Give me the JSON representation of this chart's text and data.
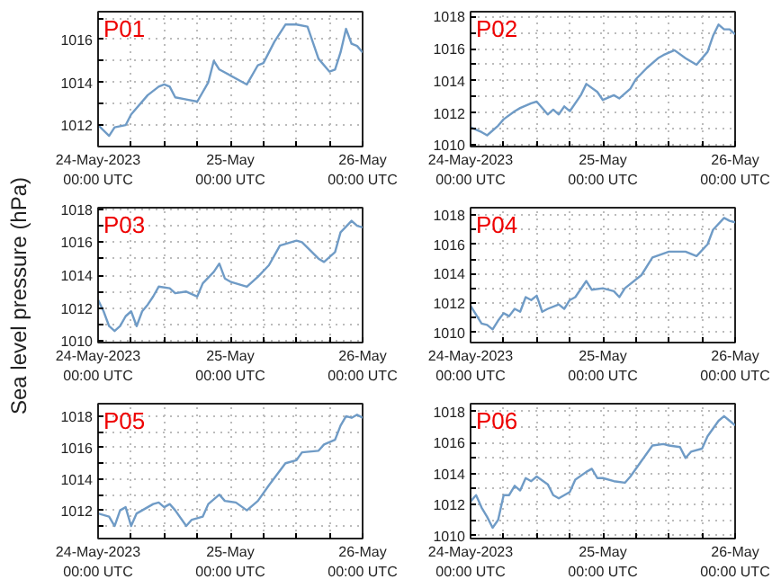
{
  "chart_data": [
    {
      "type": "line",
      "title": "P01",
      "xlim": [
        "2023-05-24T00:00",
        "2023-05-26T00:00"
      ],
      "ylim": [
        1011.0,
        1017.3
      ],
      "grid": true,
      "xticks": [
        {
          "value": "2023-05-24T00:00",
          "label": "24-May-2023\n00:00 UTC"
        },
        {
          "value": "2023-05-24T06:00",
          "label": null
        },
        {
          "value": "2023-05-24T12:00",
          "label": null
        },
        {
          "value": "2023-05-24T18:00",
          "label": null
        },
        {
          "value": "2023-05-25T00:00",
          "label": "25-May\n00:00 UTC"
        },
        {
          "value": "2023-05-25T06:00",
          "label": null
        },
        {
          "value": "2023-05-25T12:00",
          "label": null
        },
        {
          "value": "2023-05-25T18:00",
          "label": null
        },
        {
          "value": "2023-05-26T00:00",
          "label": "26-May\n00:00 UTC"
        }
      ],
      "yticks": [
        1012,
        {
          "value": 1013,
          "label": null
        },
        1014,
        {
          "value": 1015,
          "label": null
        },
        1016,
        {
          "value": 1017,
          "label": null
        }
      ],
      "x": [
        "2023-05-24T00:00",
        "2023-05-24T02:00",
        "2023-05-24T03:00",
        "2023-05-24T05:00",
        "2023-05-24T06:00",
        "2023-05-24T09:00",
        "2023-05-24T11:00",
        "2023-05-24T12:00",
        "2023-05-24T13:00",
        "2023-05-24T14:00",
        "2023-05-24T16:00",
        "2023-05-24T18:00",
        "2023-05-24T20:00",
        "2023-05-24T21:00",
        "2023-05-24T22:00",
        "2023-05-25T03:00",
        "2023-05-25T05:00",
        "2023-05-25T06:00",
        "2023-05-25T08:00",
        "2023-05-25T10:00",
        "2023-05-25T12:00",
        "2023-05-25T14:00",
        "2023-05-25T16:00",
        "2023-05-25T18:00",
        "2023-05-25T19:00",
        "2023-05-25T20:00",
        "2023-05-25T21:00",
        "2023-05-25T22:00",
        "2023-05-25T23:00",
        "2023-05-26T00:00"
      ],
      "series": [
        {
          "color": "#6f9bc6",
          "values": [
            1012.0,
            1011.5,
            1011.9,
            1012.0,
            1012.5,
            1013.4,
            1013.8,
            1013.9,
            1013.8,
            1013.3,
            1013.2,
            1013.1,
            1014.0,
            1015.0,
            1014.6,
            1013.9,
            1014.8,
            1014.9,
            1015.9,
            1016.7,
            1016.7,
            1016.6,
            1015.1,
            1014.5,
            1014.6,
            1015.4,
            1016.5,
            1015.8,
            1015.7,
            1015.4
          ]
        }
      ]
    },
    {
      "type": "line",
      "title": "P02",
      "xlim": [
        "2023-05-24T00:00",
        "2023-05-26T00:00"
      ],
      "ylim": [
        1009.9,
        1018.3
      ],
      "grid": true,
      "xticks": [
        {
          "value": "2023-05-24T00:00",
          "label": "24-May-2023\n00:00 UTC"
        },
        {
          "value": "2023-05-24T06:00",
          "label": null
        },
        {
          "value": "2023-05-24T12:00",
          "label": null
        },
        {
          "value": "2023-05-24T18:00",
          "label": null
        },
        {
          "value": "2023-05-25T00:00",
          "label": "25-May\n00:00 UTC"
        },
        {
          "value": "2023-05-25T06:00",
          "label": null
        },
        {
          "value": "2023-05-25T12:00",
          "label": null
        },
        {
          "value": "2023-05-25T18:00",
          "label": null
        },
        {
          "value": "2023-05-26T00:00",
          "label": "26-May\n00:00 UTC"
        }
      ],
      "yticks": [
        1010,
        {
          "value": 1011,
          "label": null
        },
        1012,
        {
          "value": 1013,
          "label": null
        },
        1014,
        {
          "value": 1015,
          "label": null
        },
        1016,
        {
          "value": 1017,
          "label": null
        },
        1018
      ],
      "x": [
        "2023-05-24T00:00",
        "2023-05-24T02:00",
        "2023-05-24T03:00",
        "2023-05-24T05:00",
        "2023-05-24T06:00",
        "2023-05-24T08:00",
        "2023-05-24T09:00",
        "2023-05-24T11:00",
        "2023-05-24T12:00",
        "2023-05-24T14:00",
        "2023-05-24T15:00",
        "2023-05-24T16:00",
        "2023-05-24T17:00",
        "2023-05-24T18:00",
        "2023-05-24T20:00",
        "2023-05-24T21:00",
        "2023-05-24T23:00",
        "2023-05-25T00:00",
        "2023-05-25T02:00",
        "2023-05-25T03:00",
        "2023-05-25T05:00",
        "2023-05-25T06:00",
        "2023-05-25T08:00",
        "2023-05-25T10:00",
        "2023-05-25T11:00",
        "2023-05-25T13:00",
        "2023-05-25T15:00",
        "2023-05-25T17:00",
        "2023-05-25T19:00",
        "2023-05-25T20:00",
        "2023-05-25T21:00",
        "2023-05-25T22:00",
        "2023-05-25T23:00",
        "2023-05-26T00:00"
      ],
      "series": [
        {
          "color": "#6f9bc6",
          "values": [
            1011.1,
            1010.8,
            1010.6,
            1011.2,
            1011.6,
            1012.1,
            1012.3,
            1012.6,
            1012.7,
            1011.9,
            1012.2,
            1011.9,
            1012.4,
            1012.1,
            1013.1,
            1013.8,
            1013.3,
            1012.8,
            1013.1,
            1012.9,
            1013.5,
            1014.1,
            1014.8,
            1015.4,
            1015.6,
            1015.9,
            1015.4,
            1015.0,
            1015.8,
            1016.8,
            1017.5,
            1017.2,
            1017.2,
            1016.9
          ]
        }
      ]
    },
    {
      "type": "line",
      "title": "P03",
      "ylabel": "Sea level pressure (hPa)",
      "xlim": [
        "2023-05-24T00:00",
        "2023-05-26T00:00"
      ],
      "ylim": [
        1009.9,
        1018.1
      ],
      "grid": true,
      "xticks": [
        {
          "value": "2023-05-24T00:00",
          "label": "24-May-2023\n00:00 UTC"
        },
        {
          "value": "2023-05-24T06:00",
          "label": null
        },
        {
          "value": "2023-05-24T12:00",
          "label": null
        },
        {
          "value": "2023-05-24T18:00",
          "label": null
        },
        {
          "value": "2023-05-25T00:00",
          "label": "25-May\n00:00 UTC"
        },
        {
          "value": "2023-05-25T06:00",
          "label": null
        },
        {
          "value": "2023-05-25T12:00",
          "label": null
        },
        {
          "value": "2023-05-25T18:00",
          "label": null
        },
        {
          "value": "2023-05-26T00:00",
          "label": "26-May\n00:00 UTC"
        }
      ],
      "yticks": [
        1010,
        {
          "value": 1011,
          "label": null
        },
        1012,
        {
          "value": 1013,
          "label": null
        },
        1014,
        {
          "value": 1015,
          "label": null
        },
        1016,
        {
          "value": 1017,
          "label": null
        },
        1018
      ],
      "x": [
        "2023-05-24T00:00",
        "2023-05-24T01:00",
        "2023-05-24T02:00",
        "2023-05-24T03:00",
        "2023-05-24T04:00",
        "2023-05-24T05:00",
        "2023-05-24T06:00",
        "2023-05-24T07:00",
        "2023-05-24T08:00",
        "2023-05-24T09:00",
        "2023-05-24T10:00",
        "2023-05-24T11:00",
        "2023-05-24T13:00",
        "2023-05-24T14:00",
        "2023-05-24T16:00",
        "2023-05-24T18:00",
        "2023-05-24T19:00",
        "2023-05-24T21:00",
        "2023-05-24T22:00",
        "2023-05-24T23:00",
        "2023-05-25T00:00",
        "2023-05-25T03:00",
        "2023-05-25T05:00",
        "2023-05-25T07:00",
        "2023-05-25T09:00",
        "2023-05-25T12:00",
        "2023-05-25T13:00",
        "2023-05-25T16:00",
        "2023-05-25T17:00",
        "2023-05-25T19:00",
        "2023-05-25T20:00",
        "2023-05-25T22:00",
        "2023-05-25T23:00",
        "2023-05-26T00:00"
      ],
      "series": [
        {
          "color": "#6f9bc6",
          "values": [
            1012.5,
            1011.8,
            1010.9,
            1010.6,
            1010.9,
            1011.5,
            1011.8,
            1010.9,
            1011.8,
            1012.2,
            1012.7,
            1013.3,
            1013.2,
            1012.9,
            1013.0,
            1012.7,
            1013.5,
            1014.2,
            1014.7,
            1013.8,
            1013.6,
            1013.3,
            1013.9,
            1014.6,
            1015.8,
            1016.1,
            1016.0,
            1015.0,
            1014.8,
            1015.4,
            1016.6,
            1017.3,
            1017.0,
            1016.9
          ]
        }
      ]
    },
    {
      "type": "line",
      "title": "P04",
      "xlim": [
        "2023-05-24T00:00",
        "2023-05-26T00:00"
      ],
      "ylim": [
        1009.3,
        1018.5
      ],
      "grid": true,
      "xticks": [
        {
          "value": "2023-05-24T00:00",
          "label": "24-May-2023\n00:00 UTC"
        },
        {
          "value": "2023-05-24T06:00",
          "label": null
        },
        {
          "value": "2023-05-24T12:00",
          "label": null
        },
        {
          "value": "2023-05-24T18:00",
          "label": null
        },
        {
          "value": "2023-05-25T00:00",
          "label": "25-May\n00:00 UTC"
        },
        {
          "value": "2023-05-25T06:00",
          "label": null
        },
        {
          "value": "2023-05-25T12:00",
          "label": null
        },
        {
          "value": "2023-05-25T18:00",
          "label": null
        },
        {
          "value": "2023-05-26T00:00",
          "label": "26-May\n00:00 UTC"
        }
      ],
      "yticks": [
        1010,
        {
          "value": 1011,
          "label": null
        },
        1012,
        {
          "value": 1013,
          "label": null
        },
        1014,
        {
          "value": 1015,
          "label": null
        },
        1016,
        {
          "value": 1017,
          "label": null
        },
        1018
      ],
      "x": [
        "2023-05-24T00:00",
        "2023-05-24T02:00",
        "2023-05-24T03:00",
        "2023-05-24T04:00",
        "2023-05-24T05:00",
        "2023-05-24T06:00",
        "2023-05-24T07:00",
        "2023-05-24T08:00",
        "2023-05-24T09:00",
        "2023-05-24T10:00",
        "2023-05-24T11:00",
        "2023-05-24T12:00",
        "2023-05-24T13:00",
        "2023-05-24T14:00",
        "2023-05-24T16:00",
        "2023-05-24T17:00",
        "2023-05-24T18:00",
        "2023-05-24T19:00",
        "2023-05-24T21:00",
        "2023-05-24T22:00",
        "2023-05-25T00:00",
        "2023-05-25T02:00",
        "2023-05-25T03:00",
        "2023-05-25T04:00",
        "2023-05-25T07:00",
        "2023-05-25T09:00",
        "2023-05-25T12:00",
        "2023-05-25T15:00",
        "2023-05-25T17:00",
        "2023-05-25T19:00",
        "2023-05-25T20:00",
        "2023-05-25T22:00",
        "2023-05-25T23:00",
        "2023-05-26T00:00"
      ],
      "series": [
        {
          "color": "#6f9bc6",
          "values": [
            1011.8,
            1010.6,
            1010.5,
            1010.2,
            1010.8,
            1011.3,
            1011.1,
            1011.6,
            1011.4,
            1012.4,
            1012.2,
            1012.5,
            1011.4,
            1011.6,
            1011.9,
            1011.6,
            1012.2,
            1012.4,
            1013.5,
            1012.9,
            1013.0,
            1012.8,
            1012.4,
            1013.0,
            1013.9,
            1015.1,
            1015.5,
            1015.5,
            1015.2,
            1016.0,
            1017.0,
            1017.8,
            1017.6,
            1017.5
          ]
        }
      ]
    },
    {
      "type": "line",
      "title": "P05",
      "xlim": [
        "2023-05-24T00:00",
        "2023-05-26T00:00"
      ],
      "ylim": [
        1010.2,
        1018.8
      ],
      "grid": true,
      "xticks": [
        {
          "value": "2023-05-24T00:00",
          "label": "24-May-2023\n00:00 UTC"
        },
        {
          "value": "2023-05-24T06:00",
          "label": null
        },
        {
          "value": "2023-05-24T12:00",
          "label": null
        },
        {
          "value": "2023-05-24T18:00",
          "label": null
        },
        {
          "value": "2023-05-25T00:00",
          "label": "25-May\n00:00 UTC"
        },
        {
          "value": "2023-05-25T06:00",
          "label": null
        },
        {
          "value": "2023-05-25T12:00",
          "label": null
        },
        {
          "value": "2023-05-25T18:00",
          "label": null
        },
        {
          "value": "2023-05-26T00:00",
          "label": "26-May\n00:00 UTC"
        }
      ],
      "yticks": [
        {
          "value": 1011,
          "label": null
        },
        1012,
        {
          "value": 1013,
          "label": null
        },
        1014,
        {
          "value": 1015,
          "label": null
        },
        1016,
        {
          "value": 1017,
          "label": null
        },
        1018
      ],
      "x": [
        "2023-05-24T00:00",
        "2023-05-24T02:00",
        "2023-05-24T03:00",
        "2023-05-24T04:00",
        "2023-05-24T05:00",
        "2023-05-24T06:00",
        "2023-05-24T07:00",
        "2023-05-24T09:00",
        "2023-05-24T10:00",
        "2023-05-24T11:00",
        "2023-05-24T12:00",
        "2023-05-24T13:00",
        "2023-05-24T14:00",
        "2023-05-24T16:00",
        "2023-05-24T17:00",
        "2023-05-24T19:00",
        "2023-05-24T20:00",
        "2023-05-24T22:00",
        "2023-05-24T23:00",
        "2023-05-25T01:00",
        "2023-05-25T03:00",
        "2023-05-25T05:00",
        "2023-05-25T07:00",
        "2023-05-25T10:00",
        "2023-05-25T12:00",
        "2023-05-25T13:00",
        "2023-05-25T16:00",
        "2023-05-25T17:00",
        "2023-05-25T19:00",
        "2023-05-25T20:00",
        "2023-05-25T21:00",
        "2023-05-25T22:00",
        "2023-05-25T23:00",
        "2023-05-26T00:00"
      ],
      "series": [
        {
          "color": "#6f9bc6",
          "values": [
            1011.8,
            1011.6,
            1011.0,
            1012.0,
            1012.2,
            1011.0,
            1011.8,
            1012.2,
            1012.4,
            1012.5,
            1012.2,
            1012.4,
            1012.0,
            1011.0,
            1011.4,
            1011.6,
            1012.4,
            1013.0,
            1012.6,
            1012.5,
            1012.0,
            1012.6,
            1013.6,
            1015.0,
            1015.2,
            1015.7,
            1015.8,
            1016.2,
            1016.5,
            1017.4,
            1018.0,
            1017.9,
            1018.1,
            1017.9
          ]
        }
      ]
    },
    {
      "type": "line",
      "title": "P06",
      "xlim": [
        "2023-05-24T00:00",
        "2023-05-26T00:00"
      ],
      "ylim": [
        1009.8,
        1018.5
      ],
      "grid": true,
      "xticks": [
        {
          "value": "2023-05-24T00:00",
          "label": "24-May-2023\n00:00 UTC"
        },
        {
          "value": "2023-05-24T06:00",
          "label": null
        },
        {
          "value": "2023-05-24T12:00",
          "label": null
        },
        {
          "value": "2023-05-24T18:00",
          "label": null
        },
        {
          "value": "2023-05-25T00:00",
          "label": "25-May\n00:00 UTC"
        },
        {
          "value": "2023-05-25T06:00",
          "label": null
        },
        {
          "value": "2023-05-25T12:00",
          "label": null
        },
        {
          "value": "2023-05-25T18:00",
          "label": null
        },
        {
          "value": "2023-05-26T00:00",
          "label": "26-May\n00:00 UTC"
        }
      ],
      "yticks": [
        1010,
        {
          "value": 1011,
          "label": null
        },
        1012,
        {
          "value": 1013,
          "label": null
        },
        1014,
        {
          "value": 1015,
          "label": null
        },
        1016,
        {
          "value": 1017,
          "label": null
        },
        1018
      ],
      "x": [
        "2023-05-24T00:00",
        "2023-05-24T01:00",
        "2023-05-24T02:00",
        "2023-05-24T03:00",
        "2023-05-24T04:00",
        "2023-05-24T05:00",
        "2023-05-24T06:00",
        "2023-05-24T07:00",
        "2023-05-24T08:00",
        "2023-05-24T09:00",
        "2023-05-24T10:00",
        "2023-05-24T11:00",
        "2023-05-24T12:00",
        "2023-05-24T14:00",
        "2023-05-24T15:00",
        "2023-05-24T16:00",
        "2023-05-24T18:00",
        "2023-05-24T19:00",
        "2023-05-24T21:00",
        "2023-05-24T22:00",
        "2023-05-24T23:00",
        "2023-05-25T00:00",
        "2023-05-25T02:00",
        "2023-05-25T04:00",
        "2023-05-25T05:00",
        "2023-05-25T07:00",
        "2023-05-25T09:00",
        "2023-05-25T11:00",
        "2023-05-25T12:00",
        "2023-05-25T14:00",
        "2023-05-25T15:00",
        "2023-05-25T16:00",
        "2023-05-25T18:00",
        "2023-05-25T19:00",
        "2023-05-25T21:00",
        "2023-05-25T22:00",
        "2023-05-25T23:00",
        "2023-05-26T00:00"
      ],
      "series": [
        {
          "color": "#6f9bc6",
          "values": [
            1012.2,
            1012.6,
            1011.8,
            1011.2,
            1010.5,
            1011.0,
            1012.6,
            1012.6,
            1013.2,
            1012.9,
            1013.7,
            1013.5,
            1013.8,
            1013.3,
            1012.6,
            1012.4,
            1012.8,
            1013.6,
            1014.1,
            1014.3,
            1013.7,
            1013.7,
            1013.5,
            1013.4,
            1013.8,
            1014.8,
            1015.8,
            1015.9,
            1015.8,
            1015.7,
            1015.0,
            1015.4,
            1015.6,
            1016.4,
            1017.4,
            1017.7,
            1017.4,
            1017.1
          ]
        }
      ]
    }
  ]
}
